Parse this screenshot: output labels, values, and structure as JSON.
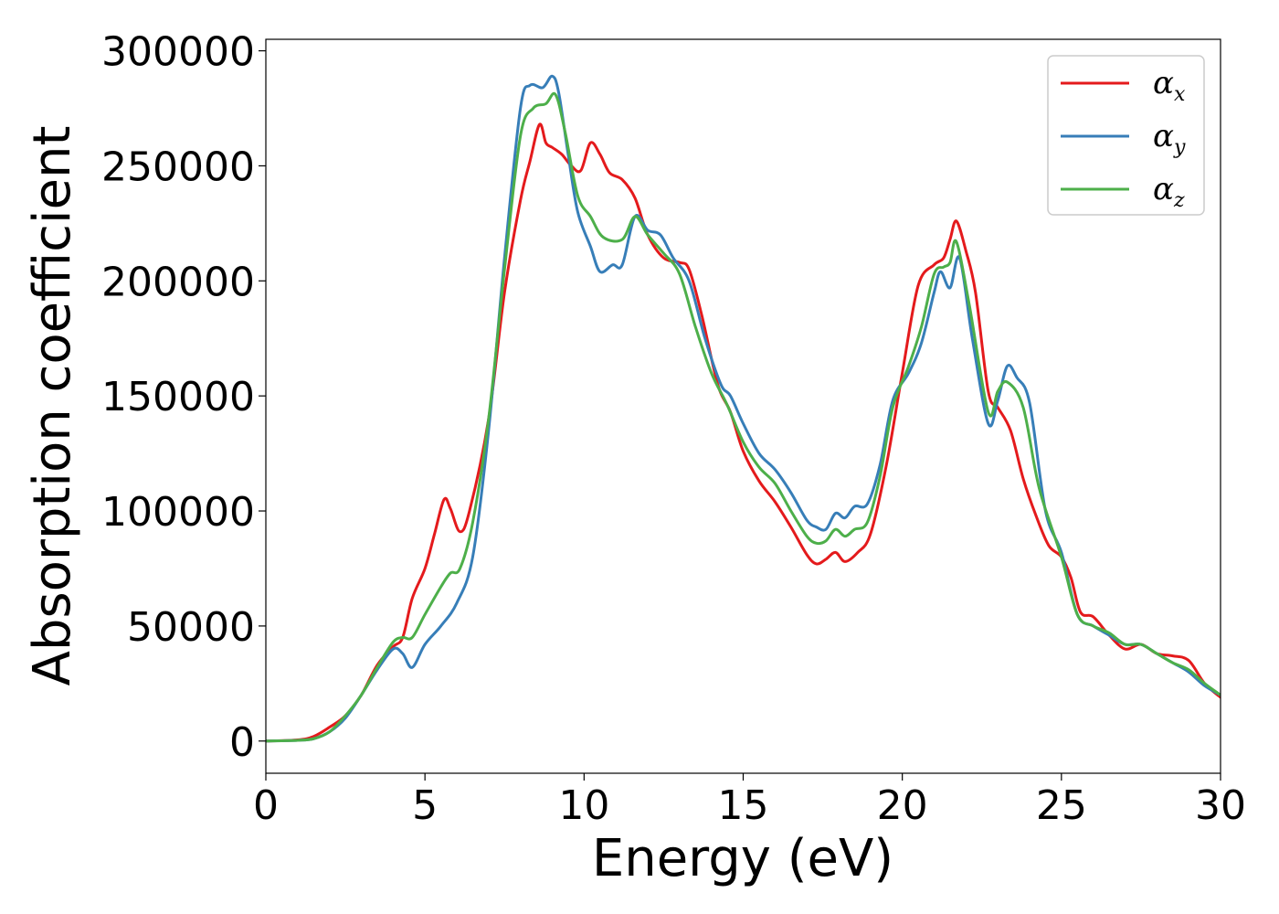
{
  "chart_data": {
    "type": "line",
    "title": "",
    "xlabel": "Energy (eV)",
    "ylabel": "Absorption coefficient",
    "xlim": [
      0,
      30
    ],
    "ylim": [
      -14000,
      305000
    ],
    "xticks": [
      0,
      5,
      10,
      15,
      20,
      25,
      30
    ],
    "xtick_labels": [
      "0",
      "5",
      "10",
      "15",
      "20",
      "25",
      "30"
    ],
    "yticks": [
      0,
      50000,
      100000,
      150000,
      200000,
      250000,
      300000
    ],
    "ytick_labels": [
      "0",
      "50000",
      "100000",
      "150000",
      "200000",
      "250000",
      "300000"
    ],
    "grid": false,
    "legend_position": "top-right",
    "series": [
      {
        "name": "α",
        "subscript": "x",
        "color": "#e41a1c",
        "points": [
          [
            0,
            0
          ],
          [
            1,
            500
          ],
          [
            1.5,
            2000
          ],
          [
            2,
            6000
          ],
          [
            2.5,
            11000
          ],
          [
            3,
            20000
          ],
          [
            3.5,
            33000
          ],
          [
            4,
            41000
          ],
          [
            4.3,
            45000
          ],
          [
            4.6,
            62000
          ],
          [
            5,
            75000
          ],
          [
            5.3,
            90000
          ],
          [
            5.6,
            105000
          ],
          [
            5.8,
            101000
          ],
          [
            6.1,
            91000
          ],
          [
            6.4,
            100000
          ],
          [
            7,
            140000
          ],
          [
            7.5,
            195000
          ],
          [
            8,
            235000
          ],
          [
            8.3,
            252000
          ],
          [
            8.6,
            268000
          ],
          [
            8.8,
            260000
          ],
          [
            9,
            258000
          ],
          [
            9.3,
            255000
          ],
          [
            9.6,
            250000
          ],
          [
            9.9,
            248000
          ],
          [
            10.2,
            260000
          ],
          [
            10.5,
            255000
          ],
          [
            10.8,
            247000
          ],
          [
            11.2,
            244000
          ],
          [
            11.6,
            236000
          ],
          [
            12,
            220000
          ],
          [
            12.5,
            210000
          ],
          [
            13,
            208000
          ],
          [
            13.3,
            205000
          ],
          [
            13.7,
            185000
          ],
          [
            14.2,
            155000
          ],
          [
            14.6,
            143000
          ],
          [
            15,
            126000
          ],
          [
            15.5,
            113000
          ],
          [
            16,
            104000
          ],
          [
            16.5,
            93000
          ],
          [
            17,
            81000
          ],
          [
            17.3,
            77000
          ],
          [
            17.6,
            79000
          ],
          [
            17.9,
            82000
          ],
          [
            18.2,
            78000
          ],
          [
            18.6,
            82000
          ],
          [
            19,
            90000
          ],
          [
            19.5,
            120000
          ],
          [
            20,
            160000
          ],
          [
            20.5,
            198000
          ],
          [
            21,
            207000
          ],
          [
            21.3,
            210000
          ],
          [
            21.5,
            218000
          ],
          [
            21.7,
            226000
          ],
          [
            22,
            213000
          ],
          [
            22.3,
            195000
          ],
          [
            22.7,
            152000
          ],
          [
            23,
            145000
          ],
          [
            23.4,
            135000
          ],
          [
            23.8,
            114000
          ],
          [
            24.2,
            98000
          ],
          [
            24.6,
            85000
          ],
          [
            25,
            80000
          ],
          [
            25.3,
            71000
          ],
          [
            25.6,
            56000
          ],
          [
            26,
            54000
          ],
          [
            26.5,
            46000
          ],
          [
            27,
            40000
          ],
          [
            27.5,
            42000
          ],
          [
            28,
            38000
          ],
          [
            28.5,
            37000
          ],
          [
            29,
            35000
          ],
          [
            29.5,
            25000
          ],
          [
            30,
            19000
          ]
        ]
      },
      {
        "name": "α",
        "subscript": "y",
        "color": "#377eb8",
        "points": [
          [
            0,
            0
          ],
          [
            1,
            300
          ],
          [
            1.5,
            1000
          ],
          [
            2,
            4000
          ],
          [
            2.5,
            10000
          ],
          [
            3,
            20000
          ],
          [
            3.5,
            31000
          ],
          [
            4,
            40000
          ],
          [
            4.3,
            38000
          ],
          [
            4.6,
            32000
          ],
          [
            5,
            42000
          ],
          [
            5.5,
            50000
          ],
          [
            6,
            60000
          ],
          [
            6.5,
            80000
          ],
          [
            7,
            135000
          ],
          [
            7.5,
            210000
          ],
          [
            8,
            275000
          ],
          [
            8.3,
            285000
          ],
          [
            8.7,
            284000
          ],
          [
            9,
            289000
          ],
          [
            9.2,
            282000
          ],
          [
            9.5,
            255000
          ],
          [
            9.8,
            230000
          ],
          [
            10.2,
            215000
          ],
          [
            10.5,
            204000
          ],
          [
            10.9,
            207000
          ],
          [
            11.2,
            207000
          ],
          [
            11.6,
            228000
          ],
          [
            12,
            222000
          ],
          [
            12.4,
            220000
          ],
          [
            12.8,
            210000
          ],
          [
            13.3,
            200000
          ],
          [
            13.8,
            175000
          ],
          [
            14.3,
            155000
          ],
          [
            14.6,
            150000
          ],
          [
            15,
            138000
          ],
          [
            15.5,
            125000
          ],
          [
            16,
            118000
          ],
          [
            16.5,
            108000
          ],
          [
            17,
            96000
          ],
          [
            17.3,
            93000
          ],
          [
            17.6,
            92000
          ],
          [
            17.9,
            99000
          ],
          [
            18.2,
            97000
          ],
          [
            18.5,
            102000
          ],
          [
            18.9,
            103000
          ],
          [
            19.3,
            120000
          ],
          [
            19.7,
            148000
          ],
          [
            20.2,
            160000
          ],
          [
            20.6,
            173000
          ],
          [
            21,
            195000
          ],
          [
            21.2,
            204000
          ],
          [
            21.5,
            197000
          ],
          [
            21.8,
            210000
          ],
          [
            22.2,
            175000
          ],
          [
            22.7,
            138000
          ],
          [
            23,
            148000
          ],
          [
            23.3,
            163000
          ],
          [
            23.6,
            158000
          ],
          [
            24,
            147000
          ],
          [
            24.5,
            100000
          ],
          [
            25,
            82000
          ],
          [
            25.5,
            55000
          ],
          [
            26,
            50000
          ],
          [
            26.5,
            46000
          ],
          [
            27,
            42000
          ],
          [
            27.5,
            42000
          ],
          [
            28,
            38000
          ],
          [
            28.5,
            34000
          ],
          [
            29,
            30000
          ],
          [
            29.5,
            24000
          ],
          [
            30,
            20000
          ]
        ]
      },
      {
        "name": "α",
        "subscript": "z",
        "color": "#4daf4a",
        "points": [
          [
            0,
            0
          ],
          [
            1,
            300
          ],
          [
            1.5,
            1000
          ],
          [
            2,
            4000
          ],
          [
            2.5,
            11000
          ],
          [
            3,
            20000
          ],
          [
            3.5,
            32000
          ],
          [
            4,
            43000
          ],
          [
            4.3,
            45000
          ],
          [
            4.6,
            45000
          ],
          [
            5,
            55000
          ],
          [
            5.5,
            67000
          ],
          [
            5.8,
            73000
          ],
          [
            6.1,
            75000
          ],
          [
            6.5,
            95000
          ],
          [
            7,
            140000
          ],
          [
            7.5,
            205000
          ],
          [
            8,
            263000
          ],
          [
            8.4,
            275000
          ],
          [
            8.8,
            277000
          ],
          [
            9.1,
            281000
          ],
          [
            9.4,
            265000
          ],
          [
            9.8,
            237000
          ],
          [
            10.2,
            228000
          ],
          [
            10.6,
            219000
          ],
          [
            11.2,
            218000
          ],
          [
            11.6,
            228000
          ],
          [
            12,
            220000
          ],
          [
            12.5,
            212000
          ],
          [
            13,
            203000
          ],
          [
            13.5,
            180000
          ],
          [
            14,
            160000
          ],
          [
            14.5,
            146000
          ],
          [
            15,
            130000
          ],
          [
            15.5,
            119000
          ],
          [
            16,
            112000
          ],
          [
            16.5,
            100000
          ],
          [
            17,
            89000
          ],
          [
            17.3,
            86000
          ],
          [
            17.6,
            87000
          ],
          [
            17.9,
            92000
          ],
          [
            18.2,
            89000
          ],
          [
            18.5,
            92000
          ],
          [
            18.9,
            95000
          ],
          [
            19.3,
            115000
          ],
          [
            19.7,
            145000
          ],
          [
            20.2,
            163000
          ],
          [
            20.6,
            180000
          ],
          [
            21,
            203000
          ],
          [
            21.3,
            206000
          ],
          [
            21.5,
            208000
          ],
          [
            21.7,
            217000
          ],
          [
            22.1,
            190000
          ],
          [
            22.7,
            143000
          ],
          [
            23,
            152000
          ],
          [
            23.3,
            156000
          ],
          [
            23.8,
            145000
          ],
          [
            24.3,
            110000
          ],
          [
            25,
            80000
          ],
          [
            25.5,
            55000
          ],
          [
            26,
            50000
          ],
          [
            26.5,
            47000
          ],
          [
            27,
            42000
          ],
          [
            27.5,
            42000
          ],
          [
            28,
            38000
          ],
          [
            28.5,
            34000
          ],
          [
            29,
            31000
          ],
          [
            29.5,
            25000
          ],
          [
            30,
            20000
          ]
        ]
      }
    ]
  }
}
